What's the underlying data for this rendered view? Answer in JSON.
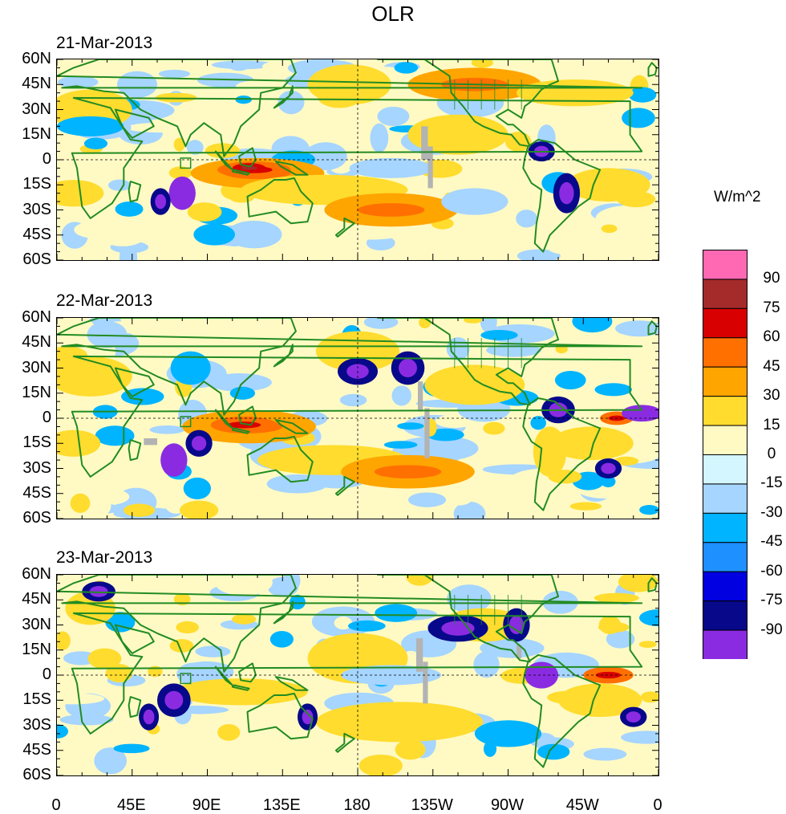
{
  "title": "OLR",
  "units": "W/m^2",
  "panels": [
    {
      "date": "21-Mar-2013"
    },
    {
      "date": "22-Mar-2013"
    },
    {
      "date": "23-Mar-2013"
    }
  ],
  "lat_labels": [
    "60N",
    "45N",
    "30N",
    "15N",
    "0",
    "15S",
    "30S",
    "45S",
    "60S"
  ],
  "lon_labels": [
    "0",
    "45E",
    "90E",
    "135E",
    "180",
    "135W",
    "90W",
    "45W",
    "0"
  ],
  "colorbar": {
    "colors": [
      "#ff69b4",
      "#a52a2a",
      "#d80000",
      "#ff7000",
      "#ffa500",
      "#ffdc2e",
      "#fffac4",
      "#d3f6ff",
      "#a6d5ff",
      "#00b4ff",
      "#1e90ff",
      "#0000e0",
      "#08088a",
      "#8a2be2"
    ],
    "labels": [
      "90",
      "75",
      "60",
      "45",
      "30",
      "15",
      "0",
      "-15",
      "-30",
      "-45",
      "-60",
      "-75",
      "-90"
    ]
  },
  "map_layers": {
    "land_outline_color": "#228b22",
    "missing_data_color": "#b3b3b3"
  }
}
